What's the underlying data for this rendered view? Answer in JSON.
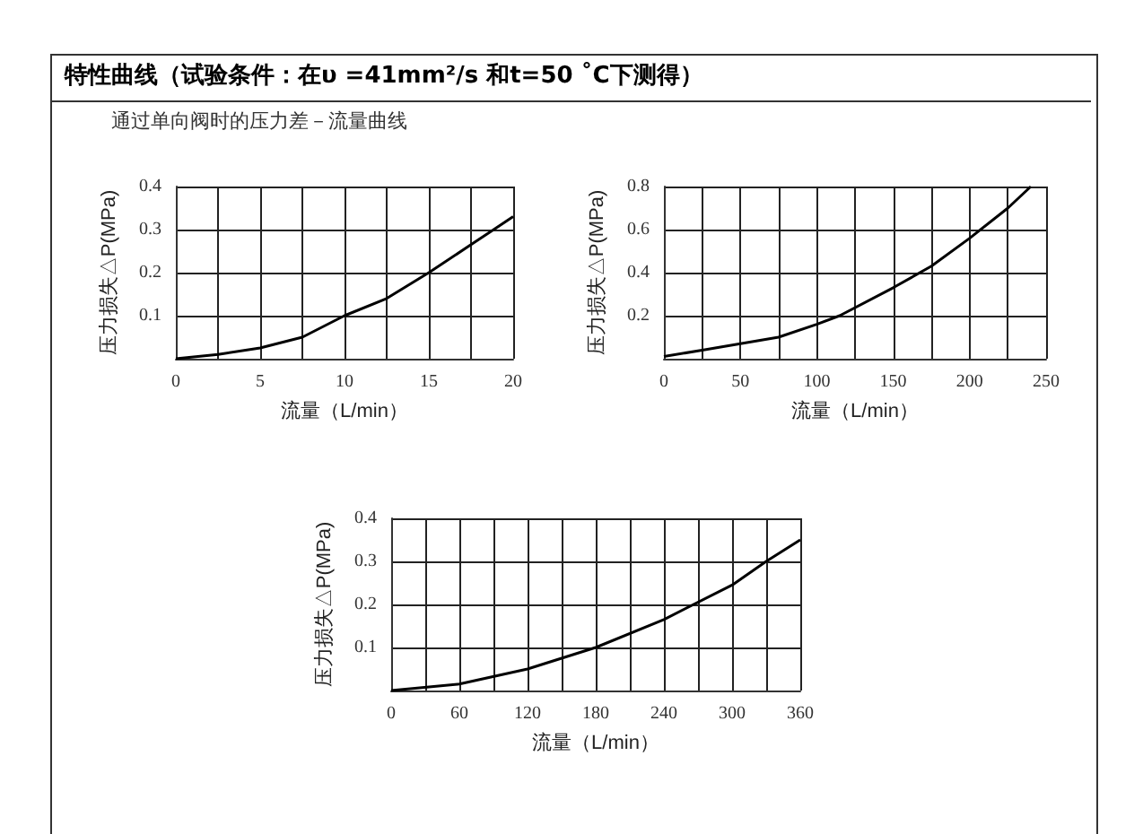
{
  "chart_data": [
    {
      "type": "line",
      "title": "特性曲线（试验条件：在υ =41mm²/s 和t=50 ˚C下测得）",
      "subtitle": "通过单向阀时的压力差－流量曲线",
      "xlabel": "流量（L/min）",
      "ylabel": "压力损失△P(MPa)",
      "x": [
        0,
        2.5,
        5,
        7.5,
        10,
        12.5,
        15,
        17.5,
        20
      ],
      "series": [
        {
          "color": "#000000",
          "values": [
            0,
            0.01,
            0.025,
            0.05,
            0.1,
            0.14,
            0.2,
            0.265,
            0.33
          ]
        }
      ],
      "xlim": [
        0,
        20
      ],
      "xticks": [
        0,
        {
          "value": 2.5,
          "label": null
        },
        5,
        {
          "value": 7.5,
          "label": null
        },
        10,
        {
          "value": 12.5,
          "label": null
        },
        15,
        {
          "value": 17.5,
          "label": null
        },
        20
      ],
      "ylim": [
        0,
        0.4
      ],
      "yticks": [
        0.1,
        0.2,
        0.3,
        0.4
      ],
      "grid": true,
      "marker": "none"
    },
    {
      "type": "line",
      "xlabel": "流量（L/min）",
      "ylabel": "压力损失△P(MPa)",
      "x": [
        0,
        25,
        50,
        75,
        100,
        115,
        150,
        175,
        200,
        225,
        240
      ],
      "series": [
        {
          "color": "#000000",
          "values": [
            0.01,
            0.04,
            0.07,
            0.1,
            0.16,
            0.2,
            0.33,
            0.43,
            0.56,
            0.7,
            0.8
          ]
        }
      ],
      "xlim": [
        0,
        250
      ],
      "xticks": [
        0,
        {
          "value": 25,
          "label": null
        },
        50,
        {
          "value": 75,
          "label": null
        },
        100,
        {
          "value": 125,
          "label": null
        },
        150,
        {
          "value": 175,
          "label": null
        },
        200,
        {
          "value": 225,
          "label": null
        },
        250
      ],
      "ylim": [
        0,
        0.8
      ],
      "yticks": [
        0.2,
        0.4,
        0.6,
        0.8
      ],
      "grid": true,
      "marker": "none"
    },
    {
      "type": "line",
      "xlabel": "流量（L/min）",
      "ylabel": "压力损失△P(MPa)",
      "x": [
        0,
        60,
        120,
        180,
        240,
        300,
        330,
        360
      ],
      "series": [
        {
          "color": "#000000",
          "values": [
            0,
            0.015,
            0.05,
            0.1,
            0.165,
            0.245,
            0.3,
            0.35
          ]
        }
      ],
      "xlim": [
        0,
        360
      ],
      "xticks": [
        0,
        {
          "value": 30,
          "label": null
        },
        60,
        {
          "value": 90,
          "label": null
        },
        120,
        {
          "value": 150,
          "label": null
        },
        180,
        {
          "value": 210,
          "label": null
        },
        240,
        {
          "value": 270,
          "label": null
        },
        300,
        {
          "value": 330,
          "label": null
        },
        360
      ],
      "ylim": [
        0,
        0.4
      ],
      "yticks": [
        0.1,
        0.2,
        0.3,
        0.4
      ],
      "grid": true,
      "marker": "none"
    }
  ]
}
